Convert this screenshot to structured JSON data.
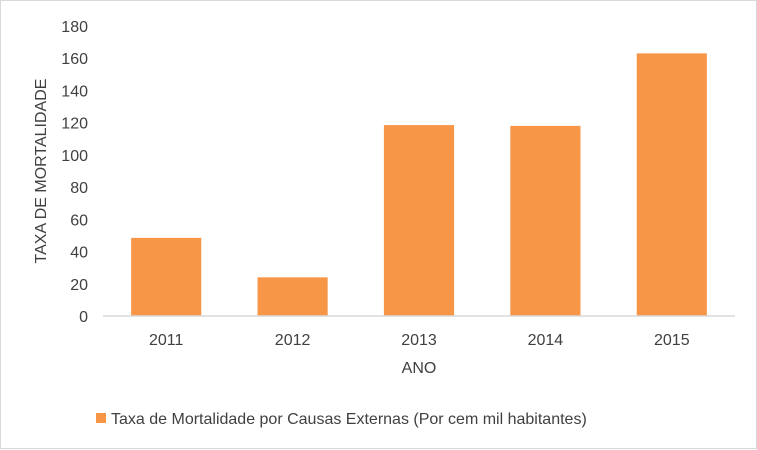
{
  "chart_data": {
    "type": "bar",
    "categories": [
      "2011",
      "2012",
      "2013",
      "2014",
      "2015"
    ],
    "series": [
      {
        "name": "Taxa de Mortalidade por Causas Externas (Por cem mil habitantes)",
        "values": [
          48.5,
          24,
          118.5,
          118,
          163
        ],
        "color": "#f79646"
      }
    ],
    "xlabel": "ANO",
    "ylabel": "TAXA DE MORTALIDADE",
    "ylim": [
      0,
      180
    ],
    "yticks": [
      "0",
      "20",
      "40",
      "60",
      "80",
      "100",
      "120",
      "140",
      "160",
      "180"
    ],
    "grid": false,
    "legend_position": "bottom"
  }
}
